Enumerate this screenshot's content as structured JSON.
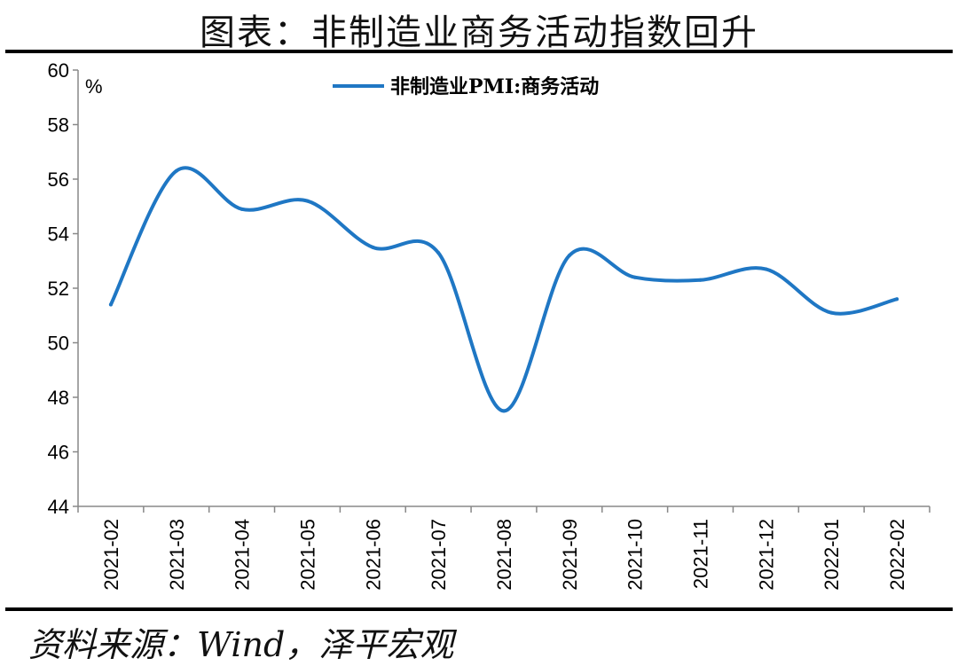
{
  "title": "图表：非制造业商务活动指数回升",
  "source": "资料来源：Wind，泽平宏观",
  "chart_data": {
    "type": "line",
    "unit": "%",
    "categories": [
      "2021-02",
      "2021-03",
      "2021-04",
      "2021-05",
      "2021-06",
      "2021-07",
      "2021-08",
      "2021-09",
      "2021-10",
      "2021-11",
      "2021-12",
      "2022-01",
      "2022-02"
    ],
    "series": [
      {
        "name": "非制造业PMI:商务活动",
        "color": "#1f77c4",
        "values": [
          51.4,
          56.3,
          54.9,
          55.2,
          53.5,
          53.3,
          47.5,
          53.2,
          52.4,
          52.3,
          52.7,
          51.1,
          51.6
        ]
      }
    ],
    "ylim": [
      44,
      60
    ],
    "yticks": [
      44,
      46,
      48,
      50,
      52,
      54,
      56,
      58,
      60
    ],
    "yticklabels": [
      "44",
      "46",
      "48",
      "50",
      "52",
      "54",
      "56",
      "58",
      "60"
    ],
    "legend_position": "top-center",
    "grid": false
  }
}
